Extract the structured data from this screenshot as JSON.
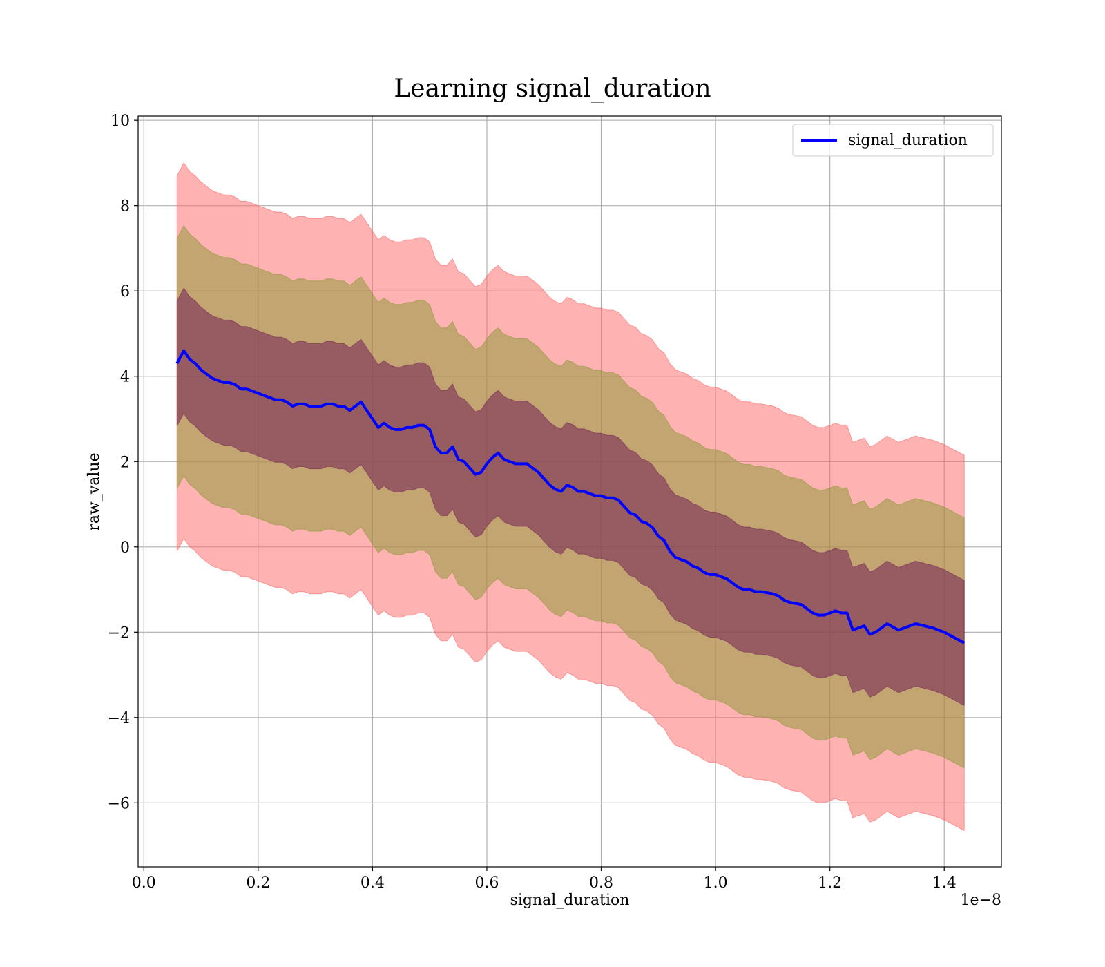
{
  "chart_data": {
    "type": "line",
    "title": "Learning signal_duration",
    "xlabel": "signal_duration",
    "ylabel": "raw_value",
    "x_offset_text": "1e−8",
    "xlim": [
      -0.01,
      1.5
    ],
    "ylim": [
      -7.5,
      10.1
    ],
    "xticks": [
      0.0,
      0.2,
      0.4,
      0.6,
      0.8,
      1.0,
      1.2,
      1.4
    ],
    "xtick_labels": [
      "0.0",
      "0.2",
      "0.4",
      "0.6",
      "0.8",
      "1.0",
      "1.2",
      "1.4"
    ],
    "yticks": [
      -6,
      -4,
      -2,
      0,
      2,
      4,
      6,
      8,
      10
    ],
    "ytick_labels": [
      "−6",
      "−4",
      "−2",
      "0",
      "2",
      "4",
      "6",
      "8",
      "10"
    ],
    "grid": true,
    "legend_position": "top-right",
    "colors": {
      "line": "#0000ff",
      "band_outer": "#ff6666",
      "band_middle": "#8f9a3c",
      "band_inner": "#7a2a58",
      "grid": "#b0b0b0"
    },
    "series": [
      {
        "name": "signal_duration",
        "x": [
          0.058,
          0.07,
          0.08,
          0.09,
          0.1,
          0.11,
          0.12,
          0.13,
          0.14,
          0.15,
          0.16,
          0.17,
          0.18,
          0.19,
          0.2,
          0.21,
          0.22,
          0.23,
          0.24,
          0.25,
          0.26,
          0.27,
          0.28,
          0.29,
          0.3,
          0.31,
          0.32,
          0.33,
          0.34,
          0.35,
          0.36,
          0.37,
          0.38,
          0.39,
          0.4,
          0.41,
          0.42,
          0.43,
          0.44,
          0.45,
          0.46,
          0.47,
          0.48,
          0.49,
          0.5,
          0.51,
          0.52,
          0.53,
          0.54,
          0.55,
          0.56,
          0.57,
          0.58,
          0.59,
          0.6,
          0.61,
          0.62,
          0.63,
          0.64,
          0.65,
          0.66,
          0.67,
          0.68,
          0.69,
          0.7,
          0.71,
          0.72,
          0.73,
          0.74,
          0.75,
          0.76,
          0.77,
          0.78,
          0.79,
          0.8,
          0.81,
          0.82,
          0.83,
          0.84,
          0.85,
          0.86,
          0.87,
          0.88,
          0.89,
          0.9,
          0.91,
          0.92,
          0.93,
          0.94,
          0.95,
          0.96,
          0.97,
          0.98,
          0.99,
          1.0,
          1.02,
          1.04,
          1.05,
          1.06,
          1.07,
          1.08,
          1.1,
          1.11,
          1.12,
          1.13,
          1.15,
          1.16,
          1.17,
          1.18,
          1.19,
          1.2,
          1.21,
          1.22,
          1.23,
          1.24,
          1.25,
          1.26,
          1.27,
          1.28,
          1.3,
          1.32,
          1.35,
          1.38,
          1.4,
          1.435
        ],
        "y": [
          4.3,
          4.6,
          4.4,
          4.3,
          4.15,
          4.05,
          3.95,
          3.9,
          3.85,
          3.85,
          3.8,
          3.7,
          3.7,
          3.65,
          3.6,
          3.55,
          3.5,
          3.45,
          3.45,
          3.4,
          3.3,
          3.35,
          3.35,
          3.3,
          3.3,
          3.3,
          3.35,
          3.35,
          3.3,
          3.3,
          3.2,
          3.3,
          3.4,
          3.2,
          3.0,
          2.8,
          2.9,
          2.8,
          2.75,
          2.75,
          2.8,
          2.8,
          2.85,
          2.85,
          2.75,
          2.35,
          2.2,
          2.2,
          2.35,
          2.05,
          2.0,
          1.85,
          1.7,
          1.75,
          1.95,
          2.1,
          2.2,
          2.05,
          2.0,
          1.95,
          1.95,
          1.95,
          1.85,
          1.75,
          1.6,
          1.45,
          1.35,
          1.3,
          1.45,
          1.4,
          1.3,
          1.3,
          1.25,
          1.2,
          1.2,
          1.15,
          1.15,
          1.1,
          0.95,
          0.8,
          0.75,
          0.6,
          0.55,
          0.45,
          0.25,
          0.15,
          -0.1,
          -0.25,
          -0.3,
          -0.35,
          -0.45,
          -0.5,
          -0.6,
          -0.65,
          -0.65,
          -0.75,
          -0.95,
          -1.0,
          -1.0,
          -1.05,
          -1.05,
          -1.1,
          -1.15,
          -1.25,
          -1.3,
          -1.35,
          -1.45,
          -1.55,
          -1.6,
          -1.6,
          -1.55,
          -1.5,
          -1.55,
          -1.55,
          -1.95,
          -1.9,
          -1.85,
          -2.05,
          -2.0,
          -1.8,
          -1.95,
          -1.8,
          -1.9,
          -2.0,
          -2.25
        ]
      }
    ],
    "bands": [
      {
        "k": 3,
        "base_width": 4.4,
        "end_width": 4.5
      },
      {
        "k": 2,
        "base_width": 4.4,
        "end_width": 4.5
      },
      {
        "k": 1,
        "base_width": 4.4,
        "end_width": 4.5
      }
    ]
  }
}
